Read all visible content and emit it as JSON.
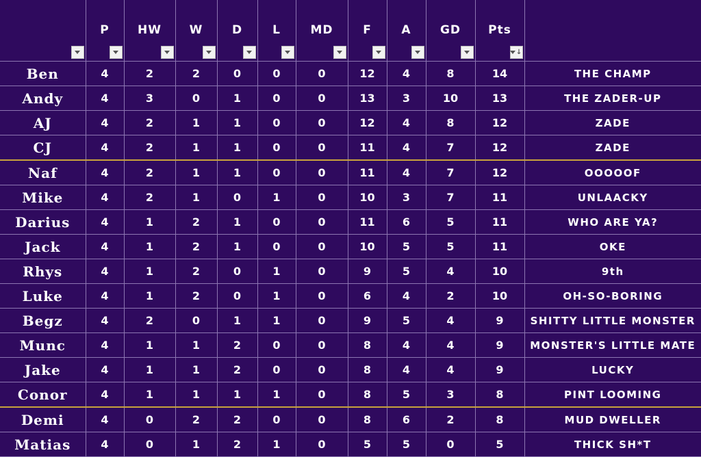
{
  "columns": [
    {
      "key": "name",
      "label": ""
    },
    {
      "key": "p",
      "label": "P"
    },
    {
      "key": "hw",
      "label": "HW"
    },
    {
      "key": "w",
      "label": "W"
    },
    {
      "key": "d",
      "label": "D"
    },
    {
      "key": "l",
      "label": "L"
    },
    {
      "key": "md",
      "label": "MD"
    },
    {
      "key": "f",
      "label": "F"
    },
    {
      "key": "a",
      "label": "A"
    },
    {
      "key": "gd",
      "label": "GD"
    },
    {
      "key": "pts",
      "label": "Pts"
    },
    {
      "key": "nick",
      "label": ""
    }
  ],
  "sorted_column": "pts",
  "rows": [
    {
      "name": "Ben",
      "p": "4",
      "hw": "2",
      "w": "2",
      "d": "0",
      "l": "0",
      "md": "0",
      "f": "12",
      "a": "4",
      "gd": "8",
      "pts": "14",
      "nick": "THE CHAMP"
    },
    {
      "name": "Andy",
      "p": "4",
      "hw": "3",
      "w": "0",
      "d": "1",
      "l": "0",
      "md": "0",
      "f": "13",
      "a": "3",
      "gd": "10",
      "pts": "13",
      "nick": "THE ZADER-UP"
    },
    {
      "name": "AJ",
      "p": "4",
      "hw": "2",
      "w": "1",
      "d": "1",
      "l": "0",
      "md": "0",
      "f": "12",
      "a": "4",
      "gd": "8",
      "pts": "12",
      "nick": "ZADE"
    },
    {
      "name": "CJ",
      "p": "4",
      "hw": "2",
      "w": "1",
      "d": "1",
      "l": "0",
      "md": "0",
      "f": "11",
      "a": "4",
      "gd": "7",
      "pts": "12",
      "nick": "ZADE"
    },
    {
      "name": "Naf",
      "p": "4",
      "hw": "2",
      "w": "1",
      "d": "1",
      "l": "0",
      "md": "0",
      "f": "11",
      "a": "4",
      "gd": "7",
      "pts": "12",
      "nick": "OOOOOF"
    },
    {
      "name": "Mike",
      "p": "4",
      "hw": "2",
      "w": "1",
      "d": "0",
      "l": "1",
      "md": "0",
      "f": "10",
      "a": "3",
      "gd": "7",
      "pts": "11",
      "nick": "UNLAACKY"
    },
    {
      "name": "Darius",
      "p": "4",
      "hw": "1",
      "w": "2",
      "d": "1",
      "l": "0",
      "md": "0",
      "f": "11",
      "a": "6",
      "gd": "5",
      "pts": "11",
      "nick": "WHO ARE YA?"
    },
    {
      "name": "Jack",
      "p": "4",
      "hw": "1",
      "w": "2",
      "d": "1",
      "l": "0",
      "md": "0",
      "f": "10",
      "a": "5",
      "gd": "5",
      "pts": "11",
      "nick": "OKE"
    },
    {
      "name": "Rhys",
      "p": "4",
      "hw": "1",
      "w": "2",
      "d": "0",
      "l": "1",
      "md": "0",
      "f": "9",
      "a": "5",
      "gd": "4",
      "pts": "10",
      "nick": "9th"
    },
    {
      "name": "Luke",
      "p": "4",
      "hw": "1",
      "w": "2",
      "d": "0",
      "l": "1",
      "md": "0",
      "f": "6",
      "a": "4",
      "gd": "2",
      "pts": "10",
      "nick": "OH-SO-BORING"
    },
    {
      "name": "Begz",
      "p": "4",
      "hw": "2",
      "w": "0",
      "d": "1",
      "l": "1",
      "md": "0",
      "f": "9",
      "a": "5",
      "gd": "4",
      "pts": "9",
      "nick": "SHITTY LITTLE MONSTER"
    },
    {
      "name": "Munc",
      "p": "4",
      "hw": "1",
      "w": "1",
      "d": "2",
      "l": "0",
      "md": "0",
      "f": "8",
      "a": "4",
      "gd": "4",
      "pts": "9",
      "nick": "MONSTER'S LITTLE MATE"
    },
    {
      "name": "Jake",
      "p": "4",
      "hw": "1",
      "w": "1",
      "d": "2",
      "l": "0",
      "md": "0",
      "f": "8",
      "a": "4",
      "gd": "4",
      "pts": "9",
      "nick": "LUCKY"
    },
    {
      "name": "Conor",
      "p": "4",
      "hw": "1",
      "w": "1",
      "d": "1",
      "l": "1",
      "md": "0",
      "f": "8",
      "a": "5",
      "gd": "3",
      "pts": "8",
      "nick": "PINT LOOMING"
    },
    {
      "name": "Demi",
      "p": "4",
      "hw": "0",
      "w": "2",
      "d": "2",
      "l": "0",
      "md": "0",
      "f": "8",
      "a": "6",
      "gd": "2",
      "pts": "8",
      "nick": "MUD DWELLER"
    },
    {
      "name": "Matias",
      "p": "4",
      "hw": "0",
      "w": "1",
      "d": "2",
      "l": "1",
      "md": "0",
      "f": "5",
      "a": "5",
      "gd": "0",
      "pts": "5",
      "nick": "THICK SH*T"
    }
  ],
  "separators_before_rows": [
    4,
    14
  ],
  "colors": {
    "background": "#2f0a5e",
    "grid": "#8d76b2",
    "separator": "#c8a23c",
    "text": "#ffffff"
  }
}
